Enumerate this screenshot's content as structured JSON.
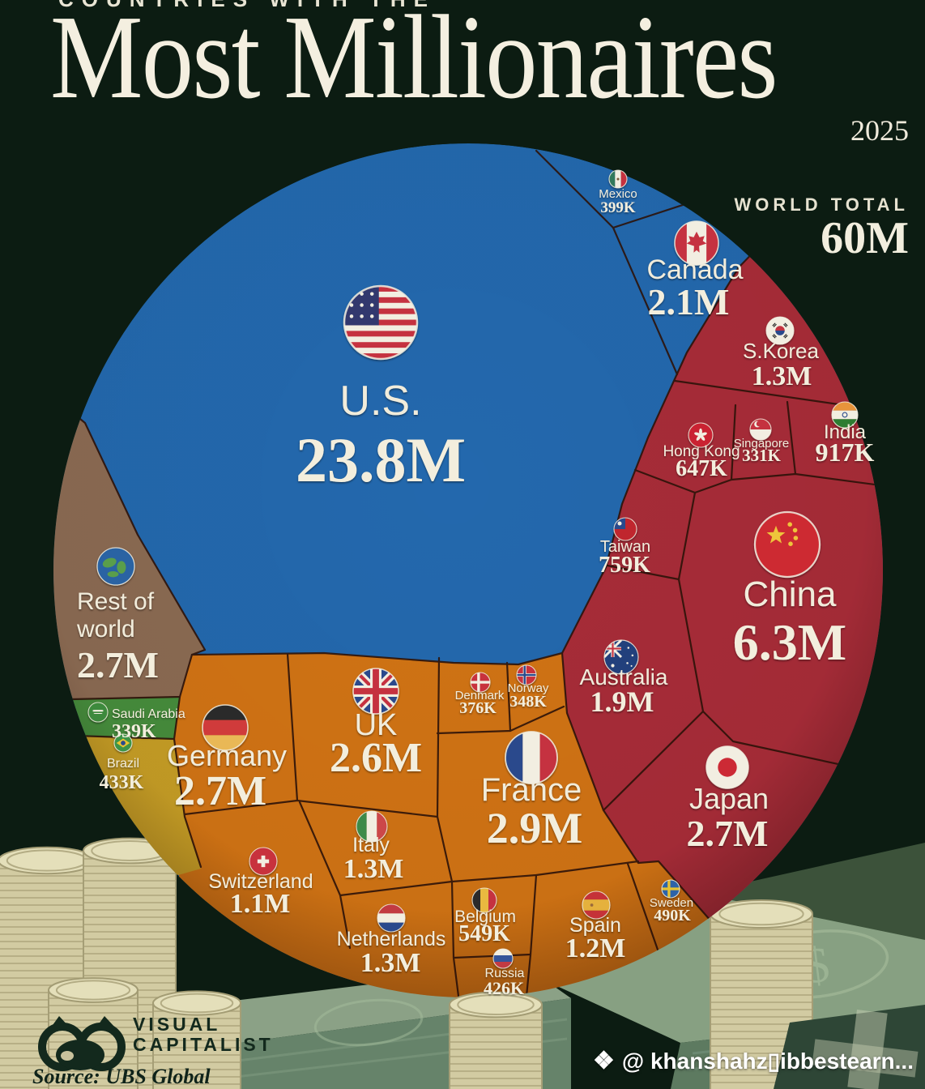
{
  "header": {
    "kicker": "COUNTRIES WITH THE",
    "title": "Most Millionaires",
    "year": "2025",
    "world_total_label": "WORLD TOTAL",
    "world_total_value": "60M"
  },
  "footer": {
    "brand_top": "VISUAL",
    "brand_bottom": "CAPITALIST",
    "source": "Source: UBS Global"
  },
  "watermark": {
    "icon": "❖",
    "text": "@ khanshahz▯ibbestearn..."
  },
  "chart_data": {
    "type": "voronoi-circle-treemap",
    "title": "Countries With the Most Millionaires",
    "year": 2025,
    "world_total": "60M",
    "unit": "number of millionaires",
    "source": "UBS Global",
    "legend_position": "none",
    "palette": {
      "background": "#0c1c12",
      "cell_border": "#2e1309",
      "label_text": "#f3eedd",
      "regions": {
        "americas": "#2368ad",
        "asia_pacific": "#a72c38",
        "europe": "#d07314",
        "rest_of_world": "#8a6a52",
        "middle_east": "#458c3c",
        "south_america": "#c49c25"
      }
    },
    "countries": [
      {
        "id": "us",
        "name": [
          "U.S."
        ],
        "value": "23.8M",
        "value_numeric": 23800000,
        "region": "americas",
        "flag": "us",
        "layout": {
          "f": [
            470,
            398,
            45
          ],
          "n": [
            470,
            512,
            52
          ],
          "v": [
            470,
            594,
            78
          ]
        }
      },
      {
        "id": "china",
        "name": [
          "China"
        ],
        "value": "6.3M",
        "value_numeric": 6300000,
        "region": "asia_pacific",
        "flag": "china",
        "layout": {
          "f": [
            972,
            672,
            40
          ],
          "n": [
            975,
            748,
            44
          ],
          "v": [
            975,
            814,
            64
          ]
        }
      },
      {
        "id": "france",
        "name": [
          "France"
        ],
        "value": "2.9M",
        "value_numeric": 2900000,
        "region": "europe",
        "flag": "france",
        "layout": {
          "f": [
            656,
            935,
            32
          ],
          "n": [
            656,
            988,
            40
          ],
          "v": [
            660,
            1040,
            54
          ]
        }
      },
      {
        "id": "germany",
        "name": [
          "Germany"
        ],
        "value": "2.7M",
        "value_numeric": 2700000,
        "region": "europe",
        "flag": "germany",
        "layout": {
          "f": [
            278,
            898,
            28
          ],
          "n": [
            280,
            945,
            36
          ],
          "v": [
            272,
            993,
            52
          ]
        }
      },
      {
        "id": "rest-of-world",
        "name": [
          "Rest of",
          "world"
        ],
        "value": "2.7M",
        "value_numeric": 2700000,
        "region": "rest_of_world",
        "flag": "earth",
        "layout": {
          "f": [
            143,
            699,
            23
          ],
          "n": [
            95,
            752,
            30
          ],
          "v": [
            95,
            836,
            46
          ],
          "a": "start",
          "lh": 34
        }
      },
      {
        "id": "japan",
        "name": [
          "Japan"
        ],
        "value": "2.7M",
        "value_numeric": 2700000,
        "region": "asia_pacific",
        "flag": "japan",
        "layout": {
          "f": [
            898,
            947,
            26
          ],
          "n": [
            900,
            998,
            36
          ],
          "v": [
            898,
            1044,
            46
          ]
        }
      },
      {
        "id": "uk",
        "name": [
          "UK"
        ],
        "value": "2.6M",
        "value_numeric": 2600000,
        "region": "europe",
        "flag": "uk",
        "layout": {
          "f": [
            464,
            853,
            28
          ],
          "n": [
            464,
            907,
            38
          ],
          "v": [
            464,
            952,
            52
          ]
        }
      },
      {
        "id": "canada",
        "name": [
          "Canada"
        ],
        "value": "2.1M",
        "value_numeric": 2100000,
        "region": "americas",
        "flag": "canada",
        "layout": {
          "f": [
            860,
            300,
            27
          ],
          "n": [
            858,
            344,
            34
          ],
          "v": [
            850,
            388,
            46
          ]
        }
      },
      {
        "id": "australia",
        "name": [
          "Australia"
        ],
        "value": "1.9M",
        "value_numeric": 1900000,
        "region": "asia_pacific",
        "flag": "australia",
        "layout": {
          "f": [
            767,
            811,
            21
          ],
          "n": [
            770,
            845,
            28
          ],
          "v": [
            768,
            878,
            36
          ]
        }
      },
      {
        "id": "skorea",
        "name": [
          "S.Korea"
        ],
        "value": "1.3M",
        "value_numeric": 1300000,
        "region": "asia_pacific",
        "flag": "skorea",
        "layout": {
          "f": [
            963,
            408,
            17
          ],
          "n": [
            964,
            442,
            26
          ],
          "v": [
            965,
            475,
            34
          ]
        }
      },
      {
        "id": "italy",
        "name": [
          "Italy"
        ],
        "value": "1.3M",
        "value_numeric": 1300000,
        "region": "europe",
        "flag": "italy",
        "layout": {
          "f": [
            459,
            1020,
            19
          ],
          "n": [
            458,
            1051,
            25
          ],
          "v": [
            461,
            1083,
            34
          ]
        }
      },
      {
        "id": "netherlands",
        "name": [
          "Netherlands"
        ],
        "value": "1.3M",
        "value_numeric": 1300000,
        "region": "europe",
        "flag": "netherlands",
        "layout": {
          "f": [
            483,
            1133,
            17
          ],
          "n": [
            483,
            1167,
            25
          ],
          "v": [
            482,
            1199,
            34
          ]
        }
      },
      {
        "id": "spain",
        "name": [
          "Spain"
        ],
        "value": "1.2M",
        "value_numeric": 1200000,
        "region": "europe",
        "flag": "spain",
        "layout": {
          "f": [
            736,
            1117,
            17
          ],
          "n": [
            735,
            1150,
            25
          ],
          "v": [
            735,
            1181,
            34
          ]
        }
      },
      {
        "id": "switzerland",
        "name": [
          "Switzerland"
        ],
        "value": "1.1M",
        "value_numeric": 1100000,
        "region": "europe",
        "flag": "switzerland",
        "layout": {
          "f": [
            325,
            1063,
            17
          ],
          "n": [
            322,
            1096,
            25
          ],
          "v": [
            321,
            1126,
            34
          ]
        }
      },
      {
        "id": "india",
        "name": [
          "India"
        ],
        "value": "917K",
        "value_numeric": 917000,
        "region": "asia_pacific",
        "flag": "india",
        "layout": {
          "f": [
            1043,
            512,
            16
          ],
          "n": [
            1043,
            541,
            24
          ],
          "v": [
            1043,
            569,
            32
          ]
        }
      },
      {
        "id": "taiwan",
        "name": [
          "Taiwan"
        ],
        "value": "759K",
        "value_numeric": 759000,
        "region": "asia_pacific",
        "flag": "taiwan",
        "layout": {
          "f": [
            772,
            653,
            14
          ],
          "n": [
            772,
            681,
            20
          ],
          "v": [
            771,
            706,
            28
          ]
        }
      },
      {
        "id": "hong-kong",
        "name": [
          "Hong Kong"
        ],
        "value": "647K",
        "value_numeric": 647000,
        "region": "asia_pacific",
        "flag": "hongkong",
        "layout": {
          "f": [
            865,
            537,
            15
          ],
          "n": [
            866,
            563,
            19
          ],
          "v": [
            866,
            587,
            28
          ]
        }
      },
      {
        "id": "belgium",
        "name": [
          "Belgium"
        ],
        "value": "549K",
        "value_numeric": 549000,
        "region": "europe",
        "flag": "belgium",
        "layout": {
          "f": [
            598,
            1111,
            15
          ],
          "n": [
            599,
            1138,
            21
          ],
          "v": [
            598,
            1161,
            28
          ]
        }
      },
      {
        "id": "sweden",
        "name": [
          "Sweden"
        ],
        "value": "490K",
        "value_numeric": 490000,
        "region": "europe",
        "flag": "sweden",
        "layout": {
          "f": [
            828,
            1097,
            11
          ],
          "n": [
            829,
            1119,
            15
          ],
          "v": [
            830,
            1136,
            20
          ]
        }
      },
      {
        "id": "brazil",
        "name": [
          "Brazil"
        ],
        "value": "433K",
        "value_numeric": 433000,
        "region": "south_america",
        "flag": "brazil",
        "layout": {
          "f": [
            152,
            917,
            11
          ],
          "n": [
            152,
            947,
            16
          ],
          "v": [
            150,
            973,
            24
          ]
        }
      },
      {
        "id": "russia",
        "name": [
          "Russia"
        ],
        "value": "426K",
        "value_numeric": 426000,
        "region": "europe",
        "flag": "russia",
        "layout": {
          "f": [
            621,
            1183,
            12
          ],
          "n": [
            623,
            1206,
            16
          ],
          "v": [
            622,
            1227,
            22
          ]
        }
      },
      {
        "id": "mexico",
        "name": [
          "Mexico"
        ],
        "value": "399K",
        "value_numeric": 399000,
        "region": "americas",
        "flag": "mexico",
        "layout": {
          "f": [
            763,
            221,
            11
          ],
          "n": [
            763,
            244,
            15
          ],
          "v": [
            763,
            262,
            19
          ]
        }
      },
      {
        "id": "denmark",
        "name": [
          "Denmark"
        ],
        "value": "376K",
        "value_numeric": 376000,
        "region": "europe",
        "flag": "denmark",
        "layout": {
          "f": [
            593,
            842,
            12
          ],
          "n": [
            592,
            863,
            15
          ],
          "v": [
            590,
            880,
            20
          ]
        }
      },
      {
        "id": "norway",
        "name": [
          "Norway"
        ],
        "value": "348K",
        "value_numeric": 348000,
        "region": "europe",
        "flag": "norway",
        "layout": {
          "f": [
            650,
            833,
            12
          ],
          "n": [
            652,
            854,
            15
          ],
          "v": [
            652,
            872,
            20
          ]
        }
      },
      {
        "id": "saudi-arabia",
        "name": [
          "Saudi Arabia"
        ],
        "value": "339K",
        "value_numeric": 339000,
        "region": "middle_east",
        "flag": "saudi",
        "layout": {
          "f": [
            121,
            879,
            12
          ],
          "n": [
            138,
            886,
            16
          ],
          "v": [
            138,
            910,
            24
          ],
          "a": "start"
        }
      },
      {
        "id": "singapore",
        "name": [
          "Singapore"
        ],
        "value": "331K",
        "value_numeric": 331000,
        "region": "asia_pacific",
        "flag": "singapore",
        "layout": {
          "f": [
            939,
            530,
            13
          ],
          "n": [
            940,
            552,
            15
          ],
          "v": [
            940,
            569,
            21
          ]
        }
      }
    ]
  }
}
